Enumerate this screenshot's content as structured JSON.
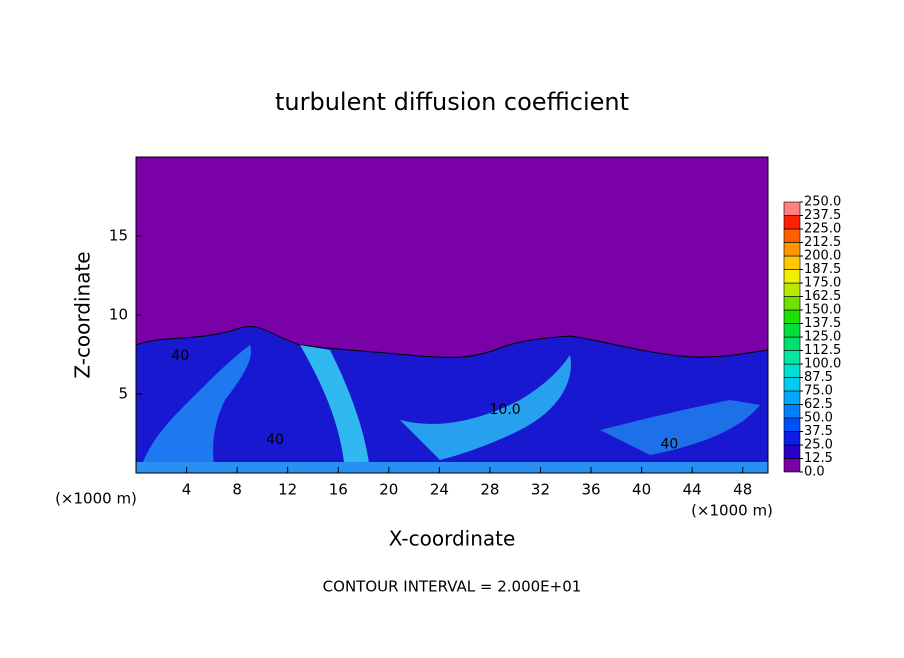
{
  "chart_data": {
    "type": "contour",
    "title": "turbulent diffusion coefficient",
    "x_label": "X-coordinate",
    "y_label": "Z-coordinate",
    "x_unit_left": "(×1000 m)",
    "x_unit_right": "(×1000 m)",
    "footer": "CONTOUR INTERVAL = 2.000E+01",
    "xlim": [
      0,
      50
    ],
    "ylim": [
      0,
      20
    ],
    "xticks": [
      4,
      8,
      12,
      16,
      20,
      24,
      28,
      32,
      36,
      40,
      44,
      48
    ],
    "yticks": [
      5,
      10,
      15
    ],
    "contour_labels": [
      {
        "text": "40",
        "x": 3.5,
        "y": 7.4
      },
      {
        "text": "40",
        "x": 11,
        "y": 2.1
      },
      {
        "text": "10.0",
        "x": 29.2,
        "y": 4
      },
      {
        "text": "40",
        "x": 42.2,
        "y": 1.8
      }
    ],
    "colorbar": {
      "ticks": [
        {
          "value": 0,
          "label": "0.0"
        },
        {
          "value": 12.5,
          "label": "12.5"
        },
        {
          "value": 25,
          "label": "25.0"
        },
        {
          "value": 37.5,
          "label": "37.5"
        },
        {
          "value": 50,
          "label": "50.0"
        },
        {
          "value": 62.5,
          "label": "62.5"
        },
        {
          "value": 75,
          "label": "75.0"
        },
        {
          "value": 87.5,
          "label": "87.5"
        },
        {
          "value": 100,
          "label": "100.0"
        },
        {
          "value": 112.5,
          "label": "112.5"
        },
        {
          "value": 125,
          "label": "125.0"
        },
        {
          "value": 137.5,
          "label": "137.5"
        },
        {
          "value": 150,
          "label": "150.0"
        },
        {
          "value": 162.5,
          "label": "162.5"
        },
        {
          "value": 175,
          "label": "175.0"
        },
        {
          "value": 187.5,
          "label": "187.5"
        },
        {
          "value": 200,
          "label": "200.0"
        },
        {
          "value": 212.5,
          "label": "212.5"
        },
        {
          "value": 225,
          "label": "225.0"
        },
        {
          "value": 237.5,
          "label": "237.5"
        },
        {
          "value": 250,
          "label": "250.0"
        }
      ],
      "colors": [
        "#7a00a8",
        "#2800c8",
        "#0a1ee8",
        "#0050ff",
        "#0080ff",
        "#00a8ff",
        "#00ccf0",
        "#00e0d0",
        "#00e8a0",
        "#00e070",
        "#00e040",
        "#20e000",
        "#70e000",
        "#b8e800",
        "#f0f000",
        "#ffc800",
        "#ff9800",
        "#ff6000",
        "#ff2000",
        "#ff8080"
      ]
    }
  }
}
